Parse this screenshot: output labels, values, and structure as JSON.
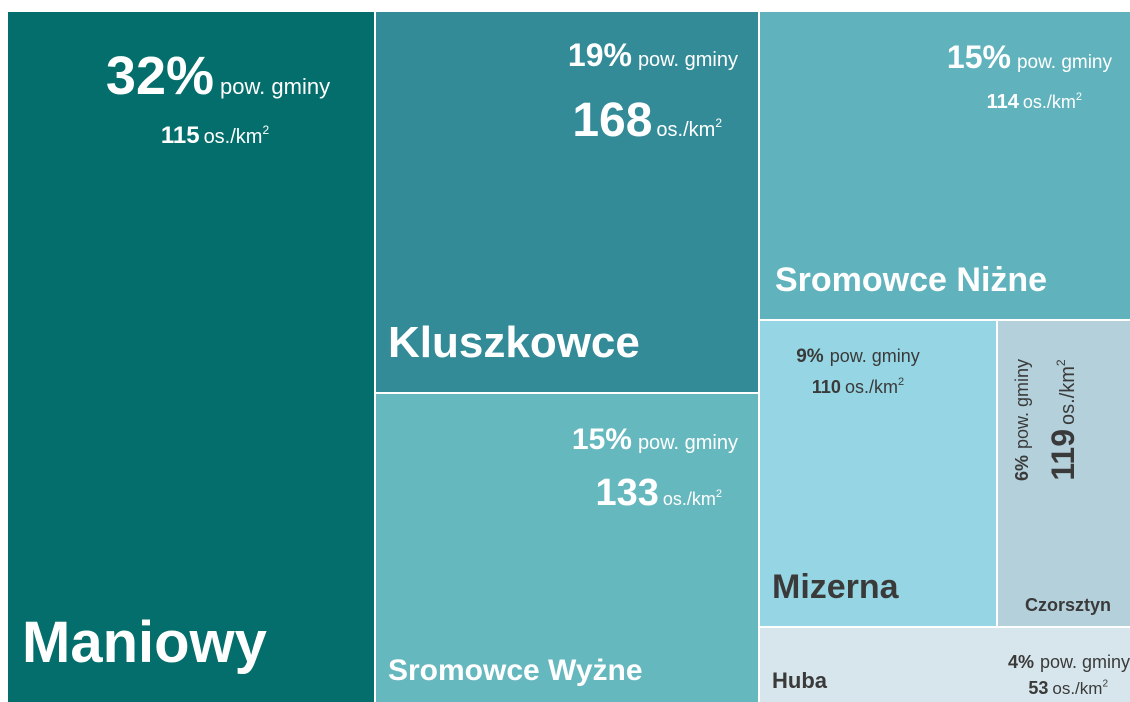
{
  "chart_data": {
    "type": "treemap",
    "categories": [
      "Maniowy",
      "Kluszkowce",
      "Sromowce Wyżne",
      "Sromowce Niżne",
      "Mizerna",
      "Czorsztyn",
      "Huba"
    ],
    "values": [
      32,
      19,
      15,
      15,
      9,
      6,
      4
    ],
    "value_labels": [
      "32%",
      "19%",
      "15%",
      "15%",
      "9%",
      "6%",
      "4%"
    ],
    "value_suffix": "pow. gminy",
    "densities": [
      115,
      168,
      133,
      114,
      110,
      119,
      53
    ],
    "density_unit": "os./km",
    "density_unit_sup": "2",
    "colors": [
      "#036e6b",
      "#348b98",
      "#66b8bf",
      "#60b3bd",
      "#96d5e3",
      "#b4d0db",
      "#d7e6ec"
    ]
  }
}
